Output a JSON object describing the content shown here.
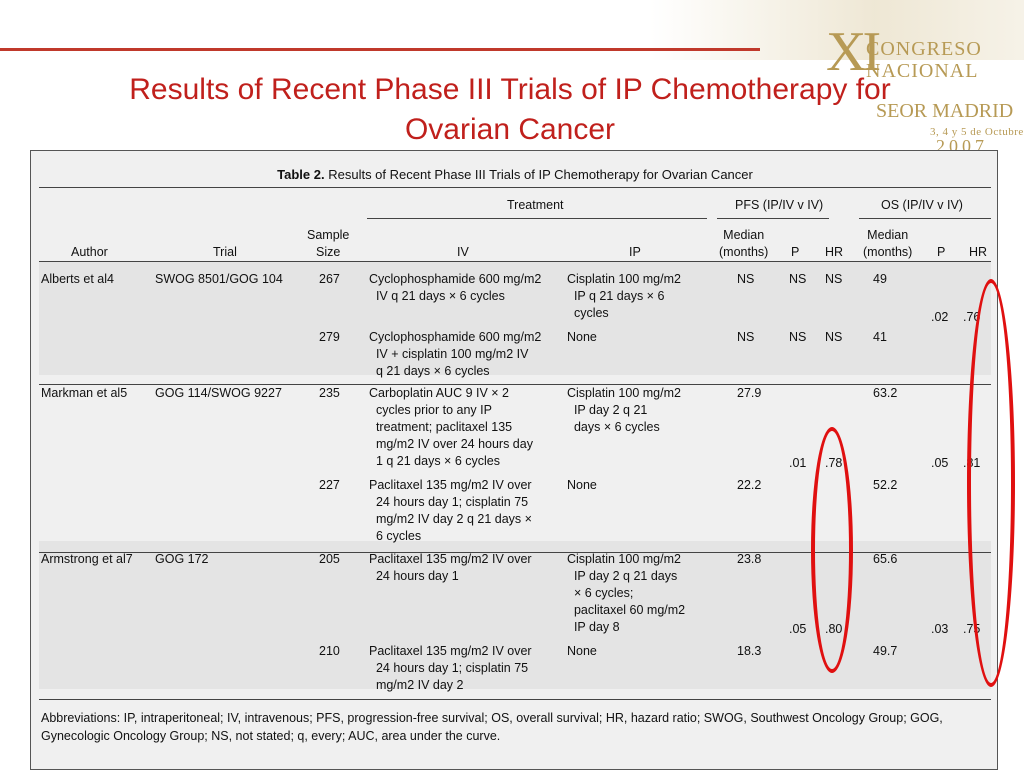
{
  "slide": {
    "title_line1": "Results of Recent Phase III Trials of IP Chemotherapy for",
    "title_line2": "Ovarian Cancer"
  },
  "logo": {
    "roman": "XI",
    "line1": "CONGRESO",
    "line2": "NACIONAL",
    "line3": "SEOR MADRID",
    "line4": "3, 4 y 5 de Octubre",
    "line5": "2007"
  },
  "table": {
    "caption_bold": "Table 2.",
    "caption_rest": "Results of Recent Phase III Trials of IP Chemotherapy for Ovarian Cancer",
    "group_headers": {
      "treatment": "Treatment",
      "pfs": "PFS (IP/IV v IV)",
      "os": "OS (IP/IV v IV)"
    },
    "columns": [
      "Author",
      "Trial",
      "Sample\nSize",
      "IV",
      "IP",
      "Median\n(months)",
      "P",
      "HR",
      "Median\n(months)",
      "P",
      "HR"
    ],
    "rows": [
      {
        "author": "Alberts et al4",
        "trial": "SWOG 8501/GOG 104",
        "size": "267",
        "iv": "Cyclophosphamide 600 mg/m2\n  IV q 21 days × 6 cycles",
        "ip": "Cisplatin 100 mg/m2\n  IP q 21 days × 6\n  cycles",
        "pfs_median": "NS",
        "pfs_p": "NS",
        "pfs_hr": "NS",
        "os_median": "49",
        "os_p": ".02",
        "os_hr": ".76"
      },
      {
        "author": "",
        "trial": "",
        "size": "279",
        "iv": "Cyclophosphamide 600 mg/m2\n  IV + cisplatin 100 mg/m2 IV\n  q 21 days × 6 cycles",
        "ip": "None",
        "pfs_median": "NS",
        "pfs_p": "NS",
        "pfs_hr": "NS",
        "os_median": "41",
        "os_p": "",
        "os_hr": ""
      },
      {
        "author": "Markman et al5",
        "trial": "GOG 114/SWOG 9227",
        "size": "235",
        "iv": "Carboplatin AUC 9 IV × 2\n  cycles prior to any IP\n  treatment; paclitaxel 135\n  mg/m2 IV over 24 hours day\n  1 q 21 days × 6 cycles",
        "ip": "Cisplatin 100 mg/m2\n  IP day 2 q 21\n  days × 6 cycles",
        "pfs_median": "27.9",
        "pfs_p": ".01",
        "pfs_hr": ".78",
        "os_median": "63.2",
        "os_p": ".05",
        "os_hr": ".81"
      },
      {
        "author": "",
        "trial": "",
        "size": "227",
        "iv": "Paclitaxel 135 mg/m2 IV over\n  24 hours day 1; cisplatin 75\n  mg/m2 IV day 2 q 21 days ×\n  6 cycles",
        "ip": "None",
        "pfs_median": "22.2",
        "pfs_p": "",
        "pfs_hr": "",
        "os_median": "52.2",
        "os_p": "",
        "os_hr": ""
      },
      {
        "author": "Armstrong et al7",
        "trial": "GOG 172",
        "size": "205",
        "iv": "Paclitaxel 135 mg/m2 IV over\n  24 hours day 1",
        "ip": "Cisplatin 100 mg/m2\n  IP day 2 q 21 days\n  × 6 cycles;\n  paclitaxel 60 mg/m2\n  IP day 8",
        "pfs_median": "23.8",
        "pfs_p": ".05",
        "pfs_hr": ".80",
        "os_median": "65.6",
        "os_p": ".03",
        "os_hr": ".75"
      },
      {
        "author": "",
        "trial": "",
        "size": "210",
        "iv": "Paclitaxel 135 mg/m2 IV over\n  24 hours day 1; cisplatin 75\n  mg/m2 IV day 2",
        "ip": "None",
        "pfs_median": "18.3",
        "pfs_p": "",
        "pfs_hr": "",
        "os_median": "49.7",
        "os_p": "",
        "os_hr": ""
      }
    ],
    "footnote": "Abbreviations: IP, intraperitoneal; IV, intravenous; PFS, progression-free survival; OS, overall survival; HR, hazard ratio; SWOG, Southwest Oncology Group; GOG, Gynecologic Oncology Group; NS, not stated; q, every; AUC, area under the curve."
  },
  "annotation_color": "#e01010"
}
